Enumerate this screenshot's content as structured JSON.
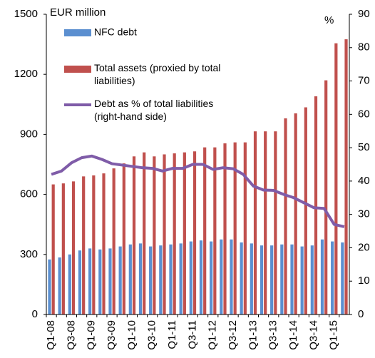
{
  "chart_data": {
    "type": "bar",
    "y_label": "EUR million",
    "y2_label": "%",
    "categories": [
      "Q1-08",
      null,
      "Q3-08",
      null,
      "Q1-09",
      null,
      "Q3-09",
      null,
      "Q1-10",
      null,
      "Q3-10",
      null,
      "Q1-11",
      null,
      "Q3-11",
      null,
      "Q1-12",
      null,
      "Q3-12",
      null,
      "Q1-13",
      null,
      "Q3-13",
      null,
      "Q1-14",
      null,
      "Q3-14",
      null,
      "Q1-15",
      null
    ],
    "series": [
      {
        "name": "NFC debt",
        "color": "#5b8fd0",
        "type": "bar",
        "values": [
          275,
          285,
          300,
          320,
          330,
          325,
          330,
          340,
          350,
          355,
          340,
          345,
          350,
          355,
          365,
          370,
          365,
          375,
          375,
          360,
          355,
          345,
          345,
          350,
          350,
          340,
          345,
          375,
          365,
          360
        ]
      },
      {
        "name": "Total assets (proxied by total liabilities)",
        "color": "#c0504d",
        "type": "bar",
        "values": [
          650,
          655,
          665,
          690,
          695,
          705,
          730,
          755,
          790,
          810,
          790,
          800,
          805,
          810,
          815,
          835,
          835,
          855,
          860,
          860,
          915,
          915,
          915,
          980,
          1005,
          1035,
          1090,
          1170,
          1355,
          1375
        ]
      },
      {
        "name": "Debt as % of total liabilities (right-hand side)",
        "color": "#7f5ca8",
        "type": "line",
        "axis": "y2",
        "values": [
          42,
          43,
          45.5,
          47,
          47.5,
          46.5,
          45.2,
          44.8,
          44.4,
          44,
          43.8,
          43,
          43.8,
          43.8,
          45,
          45,
          43.5,
          44,
          43.7,
          42,
          38.5,
          37.3,
          37.2,
          36,
          35,
          33.5,
          32,
          31.8,
          27,
          26.3
        ]
      }
    ],
    "ylim": [
      0,
      1500
    ],
    "yticks": [
      0,
      300,
      600,
      900,
      1200,
      1500
    ],
    "y2lim": [
      0,
      90
    ],
    "y2ticks": [
      0,
      10,
      20,
      30,
      40,
      50,
      60,
      70,
      80,
      90
    ]
  }
}
